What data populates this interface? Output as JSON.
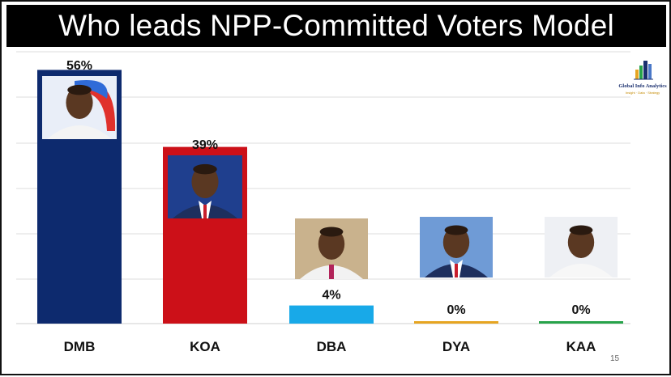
{
  "slide": {
    "title": "Who leads NPP-Committed Voters Model",
    "page_number": "15",
    "logo_name": "Global Info Analytics",
    "logo_tagline": "Insight · Data · Strategy"
  },
  "chart_data": {
    "type": "bar",
    "title": "Who leads NPP-Committed Voters Model",
    "categories": [
      "DMB",
      "KOA",
      "DBA",
      "DYA",
      "KAA"
    ],
    "values": [
      56,
      39,
      4,
      0,
      0
    ],
    "value_labels": [
      "56%",
      "39%",
      "4%",
      "0%",
      "0%"
    ],
    "ylim": [
      0,
      60
    ],
    "grid": true,
    "legend": "none",
    "colors": [
      "#0d2a6e",
      "#cc1018",
      "#18a9e8",
      "#e6a521",
      "#27a34a"
    ],
    "photo_icons": [
      "portrait-dmb-icon",
      "portrait-koa-icon",
      "portrait-dba-icon",
      "portrait-dya-icon",
      "portrait-kaa-icon"
    ]
  }
}
